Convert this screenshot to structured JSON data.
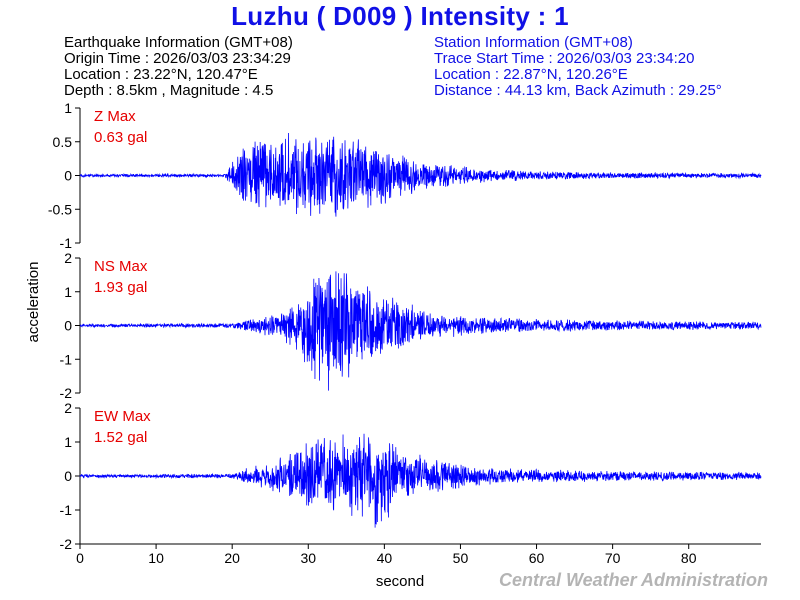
{
  "header": {
    "title": "Luzhu  ( D009 )  Intensity : 1"
  },
  "earthquake_info": {
    "heading": "Earthquake Information  (GMT+08)",
    "origin_time": "Origin Time : 2026/03/03 23:34:29",
    "location": "Location : 23.22°N, 120.47°E",
    "depth_magnitude": "Depth : 8.5km , Magnitude : 4.5"
  },
  "station_info": {
    "heading": "Station Information  (GMT+08)",
    "trace_start": "Trace Start Time : 2026/03/03 23:34:20",
    "location": "Location : 22.87°N, 120.26°E",
    "distance_azimuth": "Distance : 44.13 km, Back Azimuth : 29.25°"
  },
  "footer": {
    "credit": "Central Weather Administration"
  },
  "colors": {
    "title": "#1010e6",
    "trace": "#0000ff",
    "max_label": "#e60000",
    "credit": "#b4b4b4"
  },
  "chart_data": {
    "type": "line",
    "xlabel": "second",
    "ylabel": "acceleration",
    "xlim": [
      0,
      89.5
    ],
    "x_ticks": [
      0,
      10,
      20,
      30,
      40,
      50,
      60,
      70,
      80
    ],
    "grid": false,
    "panels": [
      {
        "component": "Z",
        "max_label": "Z Max",
        "max_value": "0.63 gal",
        "peak": 0.63,
        "ylim": [
          -1,
          1
        ],
        "y_ticks": [
          "1",
          "0.5",
          "0",
          "-0.5",
          "-1"
        ],
        "y_tick_values": [
          1,
          0.5,
          0,
          -0.5,
          -1
        ],
        "envelope": [
          [
            0,
            0.02
          ],
          [
            19,
            0.02
          ],
          [
            20.5,
            0.25
          ],
          [
            22,
            0.45
          ],
          [
            26,
            0.5
          ],
          [
            30,
            0.55
          ],
          [
            34,
            0.55
          ],
          [
            38,
            0.45
          ],
          [
            42,
            0.28
          ],
          [
            46,
            0.18
          ],
          [
            52,
            0.1
          ],
          [
            60,
            0.06
          ],
          [
            70,
            0.04
          ],
          [
            89.5,
            0.03
          ]
        ]
      },
      {
        "component": "NS",
        "max_label": "NS Max",
        "max_value": "1.93 gal",
        "peak": 1.93,
        "ylim": [
          -2,
          2
        ],
        "y_ticks": [
          "2",
          "1",
          "0",
          "-1",
          "-2"
        ],
        "y_tick_values": [
          2,
          1,
          0,
          -1,
          -2
        ],
        "envelope": [
          [
            0,
            0.04
          ],
          [
            20,
            0.06
          ],
          [
            22,
            0.15
          ],
          [
            26,
            0.35
          ],
          [
            29,
            0.9
          ],
          [
            31,
            1.5
          ],
          [
            33,
            1.7
          ],
          [
            36,
            1.3
          ],
          [
            40,
            0.9
          ],
          [
            44,
            0.5
          ],
          [
            48,
            0.3
          ],
          [
            55,
            0.2
          ],
          [
            65,
            0.15
          ],
          [
            75,
            0.12
          ],
          [
            89.5,
            0.1
          ]
        ]
      },
      {
        "component": "EW",
        "max_label": "EW Max",
        "max_value": "1.52 gal",
        "peak": 1.52,
        "ylim": [
          -2,
          2
        ],
        "y_ticks": [
          "2",
          "1",
          "0",
          "-1",
          "-2"
        ],
        "y_tick_values": [
          2,
          1,
          0,
          -1,
          -2
        ],
        "envelope": [
          [
            0,
            0.04
          ],
          [
            20,
            0.06
          ],
          [
            22,
            0.2
          ],
          [
            26,
            0.45
          ],
          [
            29,
            0.8
          ],
          [
            32,
            1.0
          ],
          [
            36,
            1.1
          ],
          [
            39,
            1.4
          ],
          [
            42,
            0.8
          ],
          [
            46,
            0.45
          ],
          [
            50,
            0.3
          ],
          [
            55,
            0.2
          ],
          [
            65,
            0.15
          ],
          [
            75,
            0.12
          ],
          [
            89.5,
            0.1
          ]
        ]
      }
    ]
  }
}
